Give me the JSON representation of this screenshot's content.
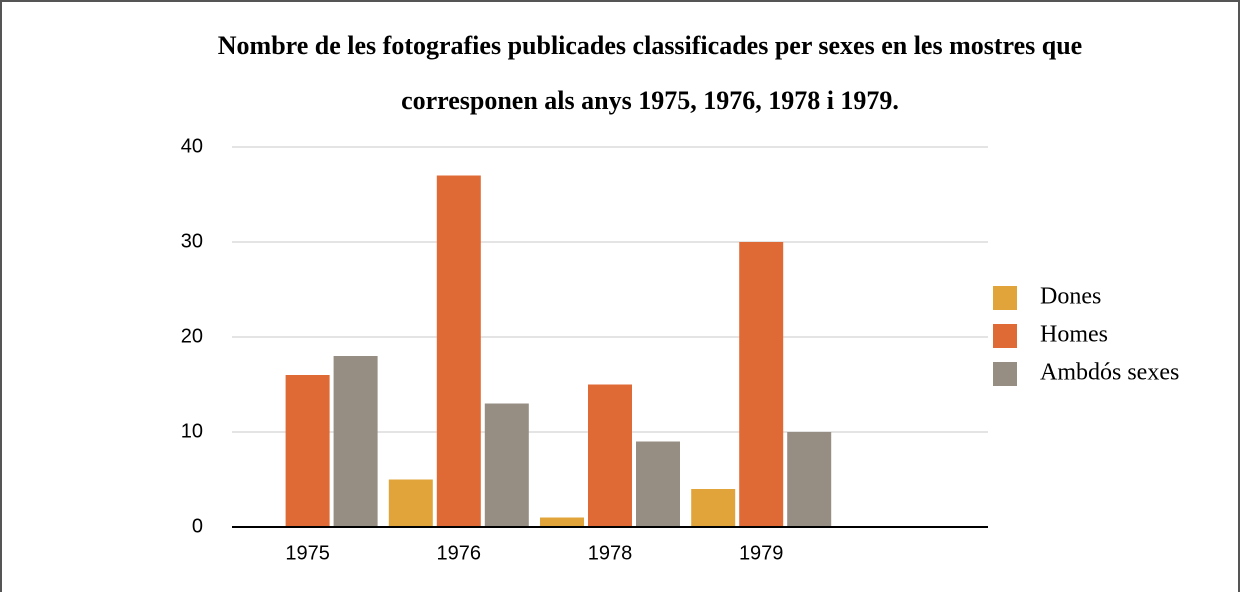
{
  "chart_data": {
    "type": "bar",
    "title": [
      "Nombre de les fotografies publicades classificades per sexes en les mostres que",
      "corresponen als anys 1975, 1976, 1978 i 1979."
    ],
    "categories": [
      "1975",
      "1976",
      "1978",
      "1979",
      null
    ],
    "series": [
      {
        "name": "Dones",
        "color": "#e0a43a",
        "values": [
          0,
          5,
          1,
          4,
          null
        ]
      },
      {
        "name": "Homes",
        "color": "#e06a35",
        "values": [
          16,
          37,
          15,
          30,
          null
        ]
      },
      {
        "name": "Ambdós sexes",
        "color": "#968d83",
        "values": [
          18,
          13,
          9,
          10,
          null
        ]
      }
    ],
    "ylim": [
      0,
      40
    ],
    "yticks": [
      0,
      10,
      20,
      30,
      40
    ],
    "grid": true,
    "legend": "right"
  }
}
